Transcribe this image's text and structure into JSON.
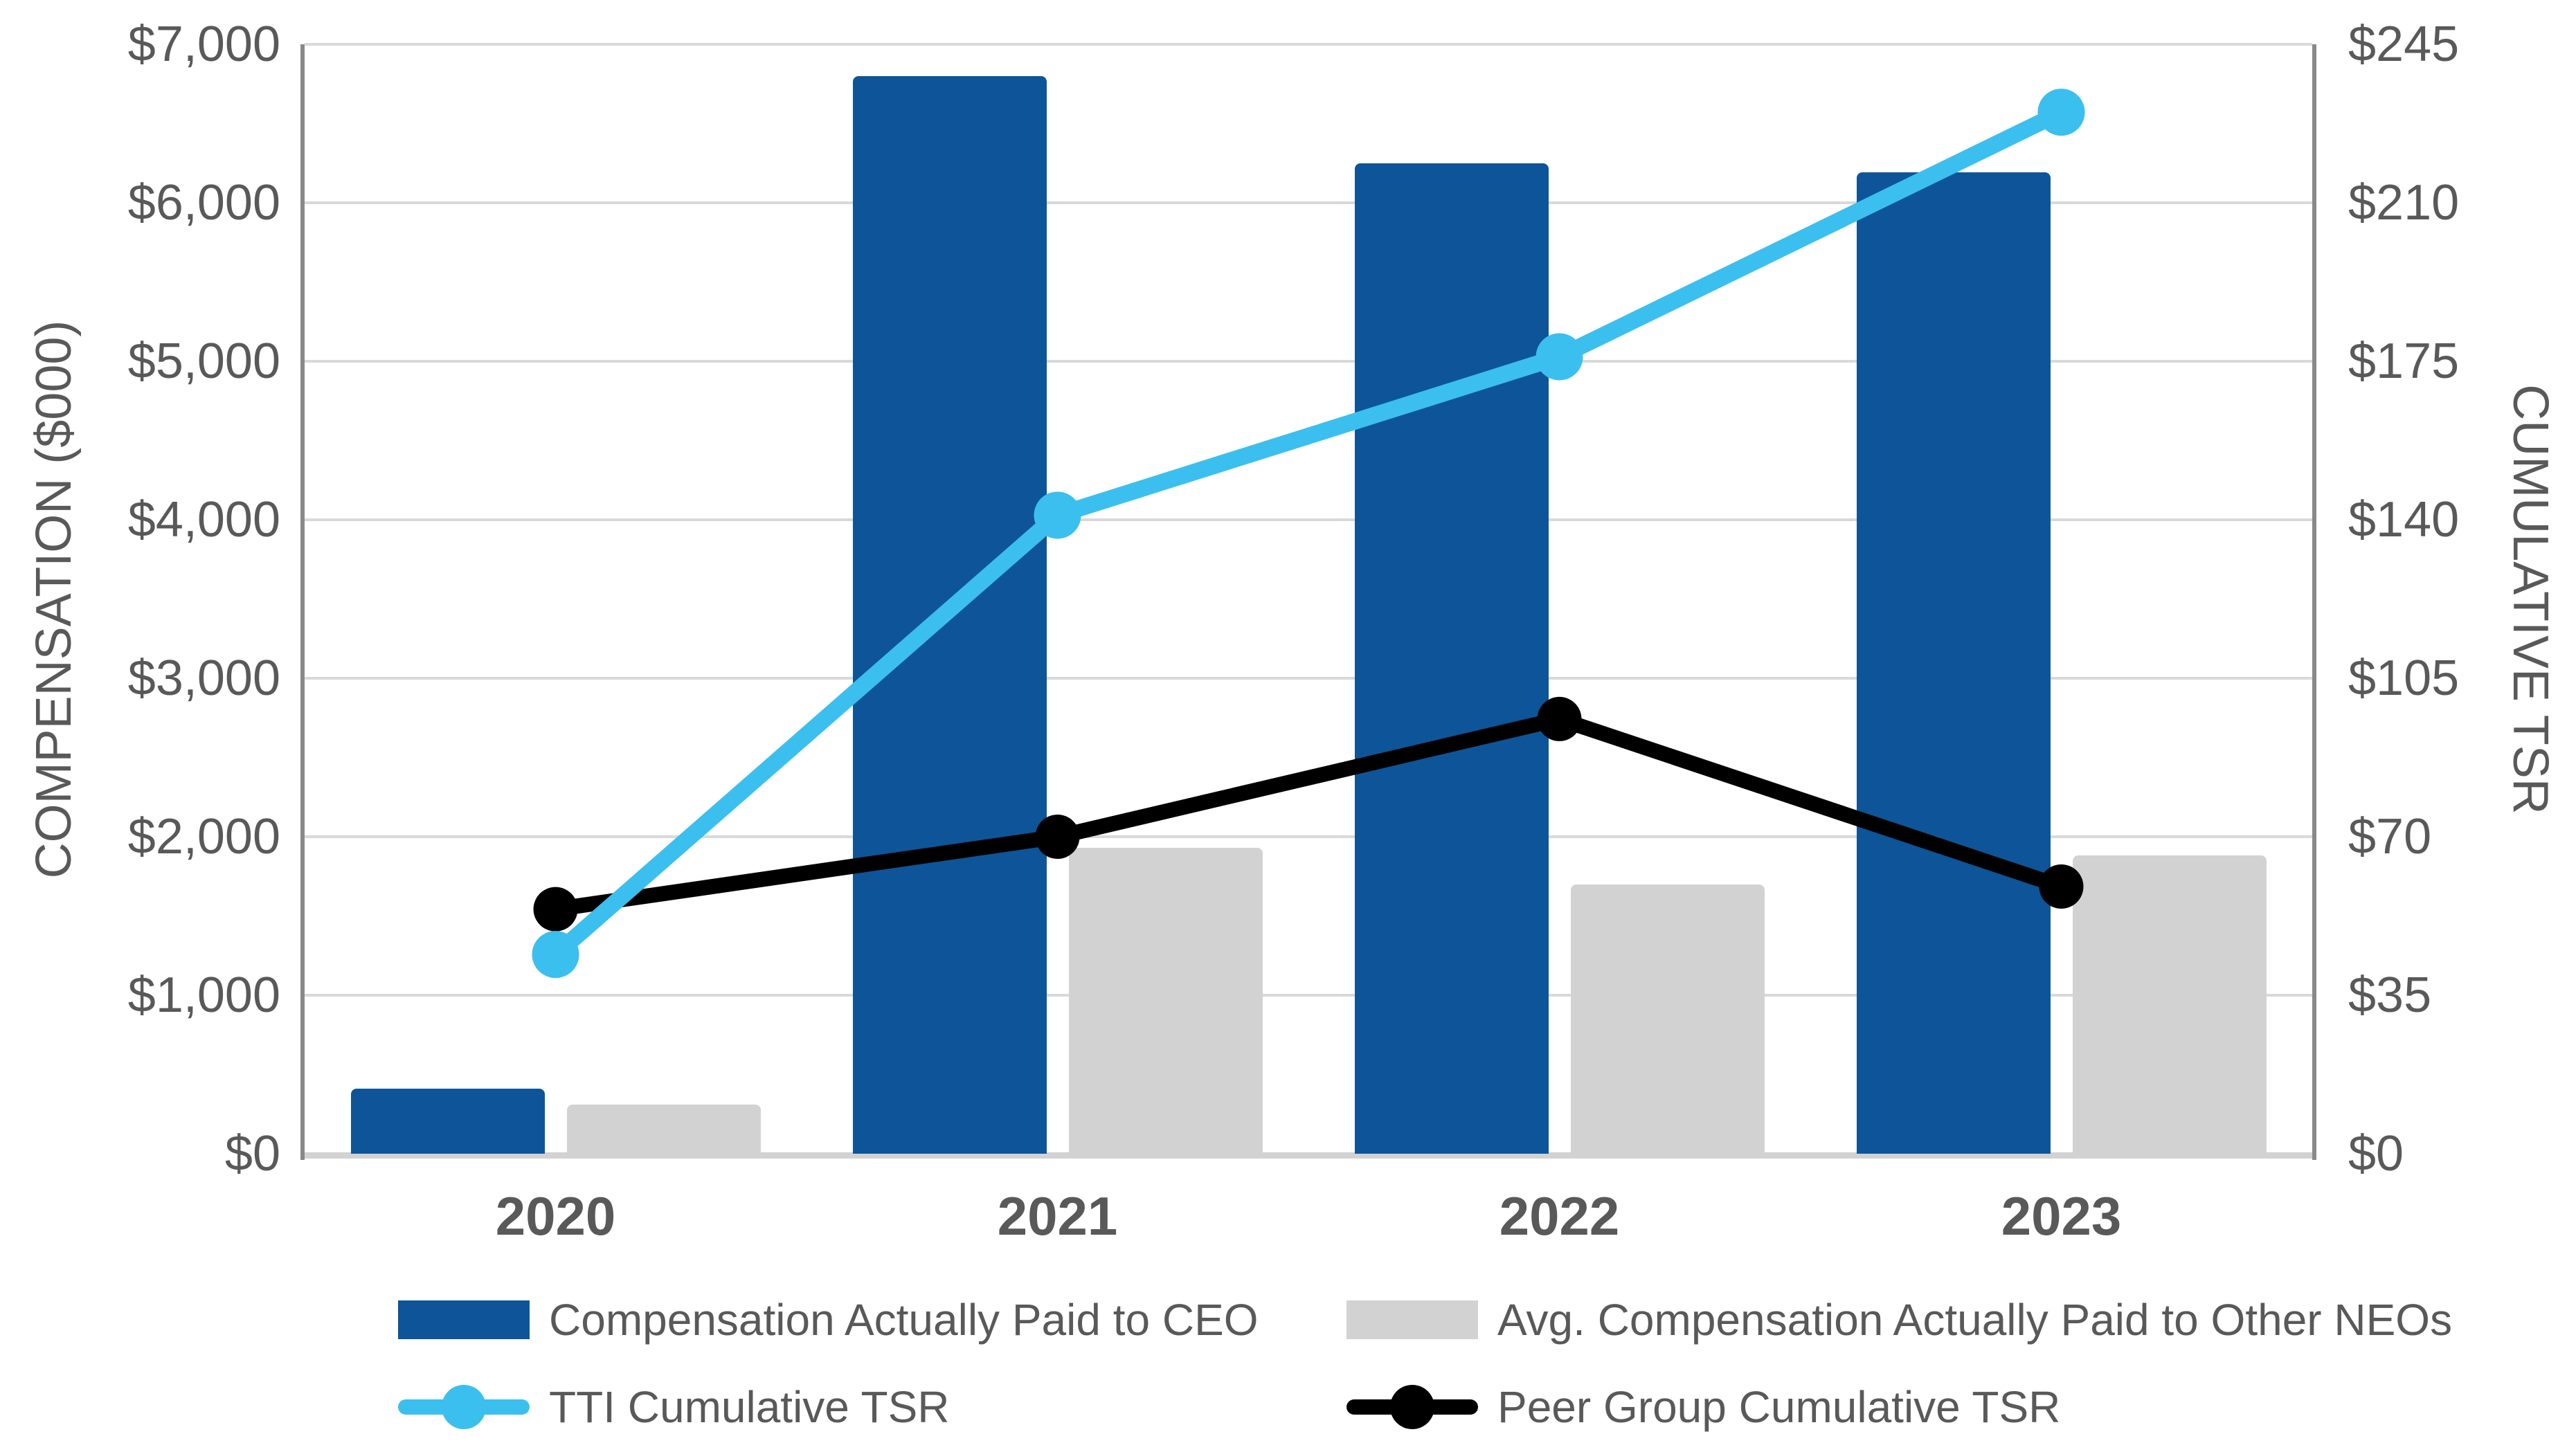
{
  "chart_data": {
    "type": "bar",
    "subtype": "combo-bar-line-dual-axis",
    "categories": [
      "2020",
      "2021",
      "2022",
      "2023"
    ],
    "series": [
      {
        "name": "Compensation Actually Paid to CEO",
        "type": "bar",
        "axis": "left",
        "color": "#0d5598",
        "values": [
          410,
          6800,
          6250,
          6190
        ]
      },
      {
        "name": "Avg. Compensation Actually Paid to Other NEOs",
        "type": "bar",
        "axis": "left",
        "color": "#d2d2d2",
        "values": [
          310,
          1930,
          1700,
          1880
        ]
      },
      {
        "name": "TTI Cumulative TSR",
        "type": "line",
        "axis": "right",
        "color": "#3bbfef",
        "values": [
          44,
          141,
          176,
          230
        ]
      },
      {
        "name": "Peer Group Cumulative TSR",
        "type": "line",
        "axis": "right",
        "color": "#000000",
        "values": [
          54,
          70,
          96,
          59
        ]
      }
    ],
    "left_axis": {
      "title": "COMPENSATION ($000)",
      "min": 0,
      "max": 7000,
      "step": 1000,
      "tick_labels": [
        "$7,000",
        "$6,000",
        "$5,000",
        "$4,000",
        "$3,000",
        "$2,000",
        "$1,000",
        "$0"
      ]
    },
    "right_axis": {
      "title": "CUMULATIVE TSR",
      "min": 0,
      "max": 245,
      "step": 35,
      "tick_labels": [
        "$245",
        "$210",
        "$175",
        "$140",
        "$105",
        "$70",
        "$35",
        "$0"
      ]
    },
    "grid": "horizontal",
    "legend_position": "bottom"
  },
  "colors": {
    "ceo_bar": "#0d5598",
    "neo_bar": "#d2d2d2",
    "tti_line": "#3bbfef",
    "peer_line": "#000000",
    "text": "#595959",
    "gridline": "#d9d9d9",
    "axis_line": "#898989",
    "background": "#ffffff"
  }
}
